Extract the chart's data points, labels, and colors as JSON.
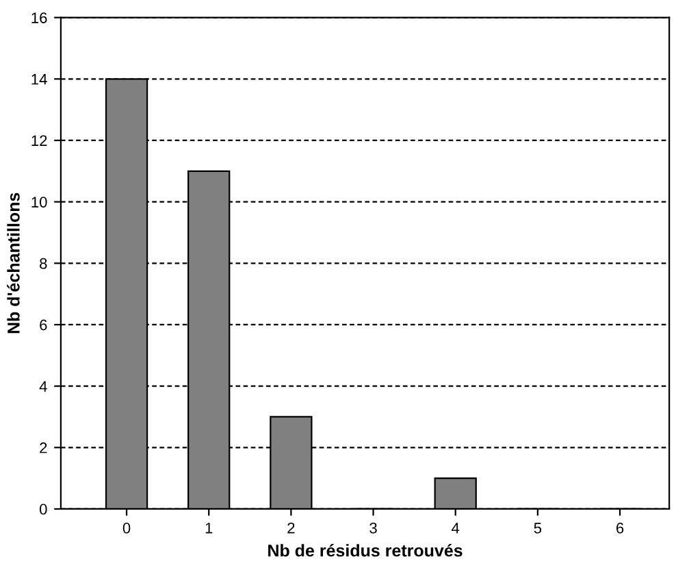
{
  "chart_data": {
    "type": "bar",
    "xlabel": "Nb de résidus retrouvés",
    "ylabel": "Nb d'échantillons",
    "categories": [
      "0",
      "1",
      "2",
      "3",
      "4",
      "5",
      "6"
    ],
    "values": [
      14,
      11,
      3,
      0,
      1,
      0,
      0
    ],
    "color": "#808080",
    "ylim": [
      0,
      16
    ],
    "yticks": [
      0,
      2,
      4,
      6,
      8,
      10,
      12,
      14,
      16
    ],
    "grid": "y"
  }
}
